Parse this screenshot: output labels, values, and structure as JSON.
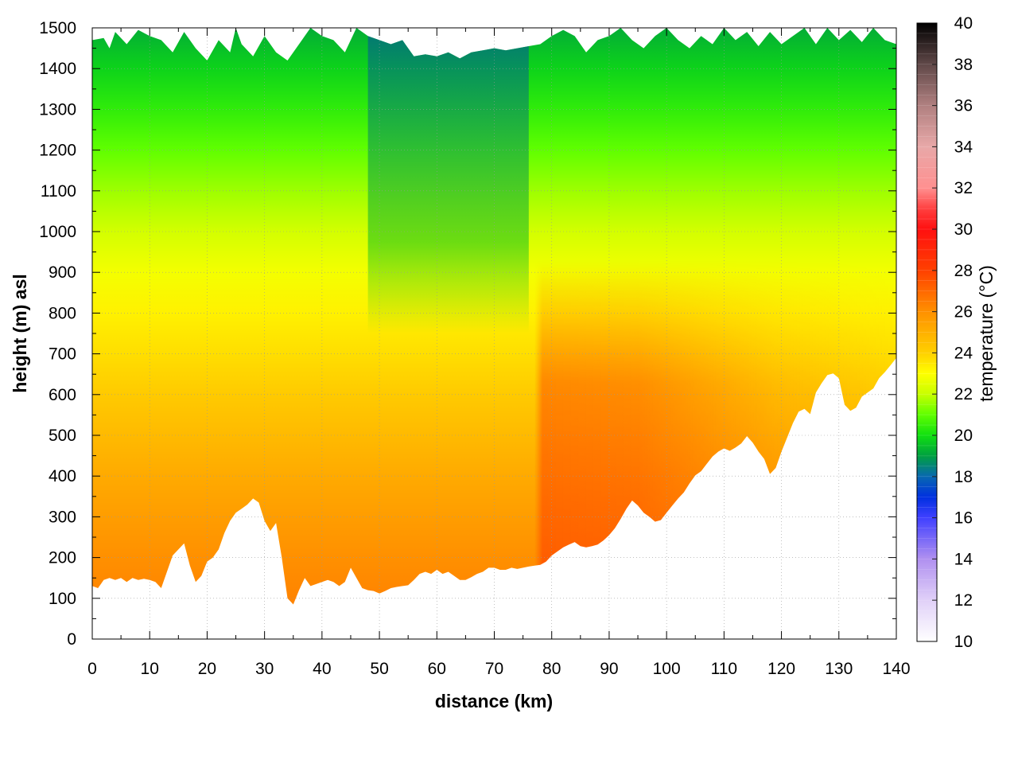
{
  "chart_data": {
    "type": "heatmap",
    "title": "",
    "xlabel": "distance (km)",
    "ylabel": "height (m) asl",
    "colorbar_label": "temperature (°C)",
    "xlim": [
      0,
      140
    ],
    "ylim": [
      0,
      1500
    ],
    "clim": [
      10,
      40
    ],
    "grid": true,
    "x_ticks": [
      0,
      10,
      20,
      30,
      40,
      50,
      60,
      70,
      80,
      90,
      100,
      110,
      120,
      130,
      140
    ],
    "y_ticks": [
      0,
      100,
      200,
      300,
      400,
      500,
      600,
      700,
      800,
      900,
      1000,
      1100,
      1200,
      1300,
      1400,
      1500
    ],
    "colorbar_ticks": [
      10,
      12,
      14,
      16,
      18,
      20,
      22,
      24,
      26,
      28,
      30,
      32,
      34,
      36,
      38,
      40
    ],
    "colormap": [
      {
        "value": 10,
        "color": "#ffffff"
      },
      {
        "value": 12,
        "color": "#e0d0f8"
      },
      {
        "value": 14,
        "color": "#b090f0"
      },
      {
        "value": 16,
        "color": "#4040ff"
      },
      {
        "value": 17,
        "color": "#0030e0"
      },
      {
        "value": 18,
        "color": "#0868b0"
      },
      {
        "value": 19,
        "color": "#00a040"
      },
      {
        "value": 20,
        "color": "#10e010"
      },
      {
        "value": 21,
        "color": "#60ff00"
      },
      {
        "value": 22,
        "color": "#c8ff00"
      },
      {
        "value": 23,
        "color": "#ffff00"
      },
      {
        "value": 24,
        "color": "#ffd000"
      },
      {
        "value": 26,
        "color": "#ff9000"
      },
      {
        "value": 28,
        "color": "#ff4000"
      },
      {
        "value": 30,
        "color": "#ff1010"
      },
      {
        "value": 31,
        "color": "#ff4040"
      },
      {
        "value": 32,
        "color": "#ff9090"
      },
      {
        "value": 34,
        "color": "#e8a8a8"
      },
      {
        "value": 36,
        "color": "#b08080"
      },
      {
        "value": 38,
        "color": "#604848"
      },
      {
        "value": 40,
        "color": "#000000"
      }
    ],
    "terrain_height": {
      "x": [
        0,
        1,
        2,
        3,
        4,
        5,
        6,
        7,
        8,
        9,
        10,
        11,
        12,
        13,
        14,
        15,
        16,
        17,
        18,
        19,
        20,
        21,
        22,
        23,
        24,
        25,
        26,
        27,
        28,
        29,
        30,
        31,
        32,
        33,
        34,
        35,
        36,
        37,
        38,
        39,
        40,
        41,
        42,
        43,
        44,
        45,
        46,
        47,
        48,
        49,
        50,
        51,
        52,
        53,
        54,
        55,
        56,
        57,
        58,
        59,
        60,
        61,
        62,
        63,
        64,
        65,
        66,
        67,
        68,
        69,
        70,
        71,
        72,
        73,
        74,
        75,
        76,
        77,
        78,
        79,
        80,
        81,
        82,
        83,
        84,
        85,
        86,
        87,
        88,
        89,
        90,
        91,
        92,
        93,
        94,
        95,
        96,
        97,
        98,
        99,
        100,
        101,
        102,
        103,
        104,
        105,
        106,
        107,
        108,
        109,
        110,
        111,
        112,
        113,
        114,
        115,
        116,
        117,
        118,
        119,
        120,
        121,
        122,
        123,
        124,
        125,
        126,
        127,
        128,
        129,
        130,
        131,
        132,
        133,
        134,
        135,
        136,
        137,
        138,
        139,
        140
      ],
      "y": [
        130,
        125,
        145,
        150,
        145,
        150,
        140,
        150,
        145,
        148,
        145,
        140,
        125,
        165,
        205,
        220,
        235,
        180,
        140,
        155,
        190,
        200,
        220,
        260,
        290,
        310,
        320,
        330,
        345,
        335,
        290,
        265,
        285,
        200,
        100,
        85,
        120,
        150,
        130,
        135,
        140,
        145,
        140,
        130,
        140,
        175,
        150,
        125,
        120,
        118,
        112,
        118,
        125,
        128,
        130,
        132,
        145,
        160,
        165,
        160,
        170,
        160,
        165,
        155,
        145,
        145,
        152,
        160,
        165,
        175,
        175,
        170,
        170,
        175,
        172,
        175,
        178,
        180,
        182,
        190,
        205,
        215,
        225,
        232,
        238,
        228,
        225,
        228,
        232,
        242,
        255,
        272,
        295,
        320,
        340,
        328,
        310,
        300,
        288,
        292,
        310,
        328,
        345,
        360,
        382,
        402,
        412,
        430,
        448,
        460,
        468,
        462,
        470,
        480,
        498,
        482,
        460,
        442,
        405,
        420,
        460,
        495,
        530,
        558,
        565,
        552,
        605,
        628,
        648,
        652,
        640,
        575,
        560,
        568,
        595,
        605,
        615,
        640,
        655,
        672,
        690
      ]
    },
    "plume_top": {
      "x": [
        0,
        2,
        3,
        4,
        6,
        8,
        10,
        12,
        14,
        16,
        18,
        20,
        22,
        24,
        25,
        26,
        28,
        30,
        32,
        34,
        36,
        38,
        40,
        42,
        44,
        46,
        48,
        50,
        52,
        54,
        56,
        58,
        60,
        62,
        64,
        66,
        68,
        70,
        72,
        74,
        76,
        78,
        80,
        82,
        84,
        86,
        88,
        90,
        92,
        94,
        96,
        98,
        100,
        102,
        104,
        106,
        108,
        110,
        112,
        114,
        116,
        118,
        120,
        122,
        124,
        126,
        128,
        130,
        132,
        134,
        136,
        138,
        140
      ],
      "y": [
        1470,
        1475,
        1450,
        1490,
        1460,
        1495,
        1480,
        1470,
        1440,
        1490,
        1450,
        1420,
        1470,
        1440,
        1500,
        1460,
        1430,
        1480,
        1440,
        1420,
        1460,
        1500,
        1480,
        1470,
        1440,
        1500,
        1480,
        1470,
        1460,
        1470,
        1430,
        1435,
        1430,
        1440,
        1425,
        1440,
        1445,
        1450,
        1445,
        1450,
        1455,
        1460,
        1480,
        1495,
        1480,
        1440,
        1470,
        1480,
        1500,
        1470,
        1450,
        1480,
        1500,
        1470,
        1450,
        1480,
        1460,
        1500,
        1470,
        1490,
        1455,
        1490,
        1460,
        1480,
        1500,
        1460,
        1500,
        1470,
        1495,
        1465,
        1500,
        1470,
        1460
      ]
    },
    "temperature_profile": {
      "heights": [
        0,
        100,
        200,
        300,
        400,
        500,
        600,
        700,
        800,
        900,
        1000,
        1100,
        1200,
        1300,
        1400,
        1500
      ],
      "temps": [
        26.3,
        26.3,
        26,
        25.6,
        25.2,
        24.7,
        24.2,
        23.7,
        23.3,
        22.8,
        22.2,
        21.6,
        21,
        20.4,
        19.8,
        19.2
      ]
    }
  }
}
